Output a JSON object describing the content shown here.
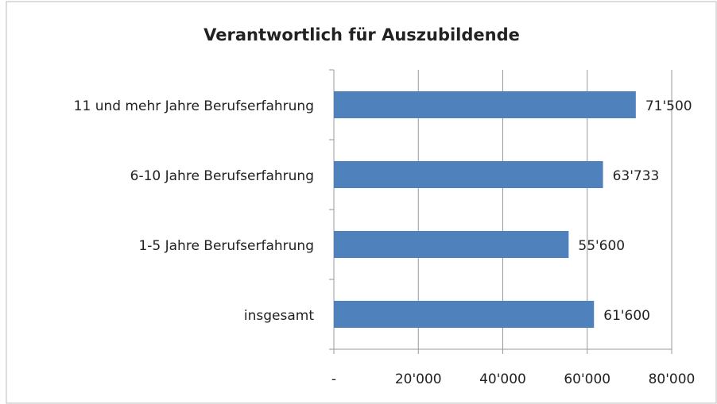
{
  "chart_data": {
    "type": "hbar",
    "title": "Verantwortlich für Auszubildende",
    "categories": [
      "11 und mehr Jahre Berufserfahrung",
      "6-10 Jahre Berufserfahrung",
      "1-5 Jahre Berufserfahrung",
      "insgesamt"
    ],
    "values": [
      71500,
      63733,
      55600,
      61600
    ],
    "value_labels": [
      "71'500",
      "63'733",
      "55'600",
      "61'600"
    ],
    "color": "#4f81bd",
    "xlim": [
      0,
      80000
    ],
    "xticks": [
      {
        "value": 0,
        "label": "-"
      },
      {
        "value": 20000,
        "label": "20'000"
      },
      {
        "value": 40000,
        "label": "40'000"
      },
      {
        "value": 60000,
        "label": "60'000"
      },
      {
        "value": 80000,
        "label": "80'000"
      }
    ],
    "grid": true
  }
}
